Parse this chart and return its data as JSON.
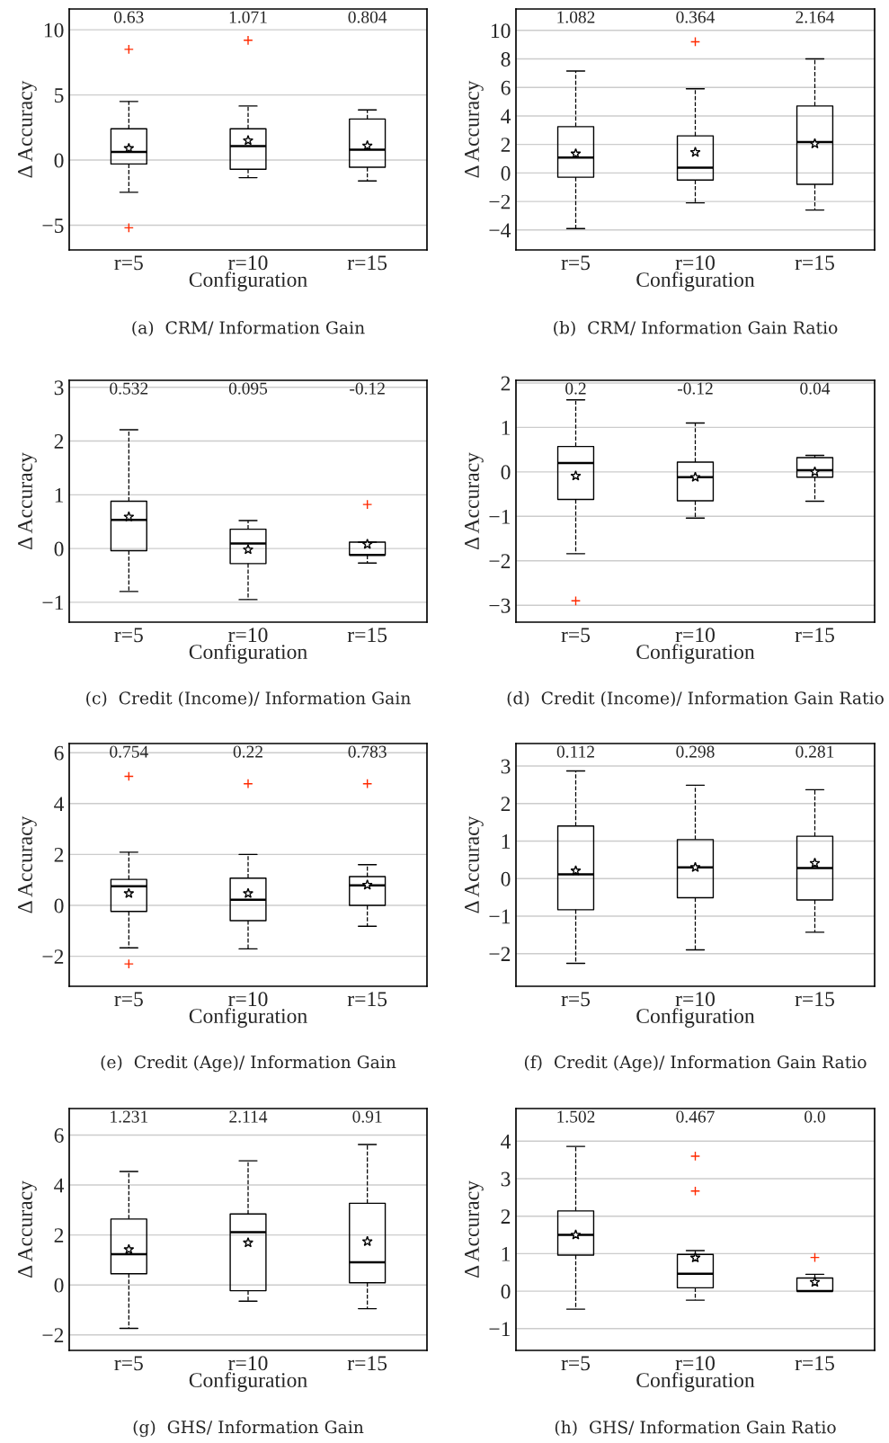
{
  "chart_data": [
    {
      "type": "box",
      "title": "(a)  CRM/ Information Gain",
      "xlabel": "Configuration",
      "ylabel": "Δ Accuracy",
      "categories": [
        "r=5",
        "r=10",
        "r=15"
      ],
      "ylim": [
        -6.9,
        11.6
      ],
      "yticks": [
        -5,
        0,
        5,
        10
      ],
      "grid": "y",
      "boxes": [
        {
          "low": -2.47,
          "q1": -0.3,
          "median": 0.63,
          "q3": 2.4,
          "high": 4.5,
          "mean": 0.9,
          "outliers": [
            8.5,
            -5.2
          ]
        },
        {
          "low": -1.35,
          "q1": -0.7,
          "median": 1.071,
          "q3": 2.4,
          "high": 4.15,
          "mean": 1.5,
          "outliers": [
            9.2
          ]
        },
        {
          "low": -1.6,
          "q1": -0.55,
          "median": 0.804,
          "q3": 3.15,
          "high": 3.85,
          "mean": 1.1
        }
      ],
      "annotations": [
        "0.63",
        "1.071",
        "0.804"
      ]
    },
    {
      "type": "box",
      "title": "(b)  CRM/ Information Gain Ratio",
      "xlabel": "Configuration",
      "ylabel": "Δ Accuracy",
      "categories": [
        "r=5",
        "r=10",
        "r=15"
      ],
      "ylim": [
        -5.4,
        11.5
      ],
      "yticks": [
        -4,
        -2,
        0,
        2,
        4,
        6,
        8,
        10
      ],
      "grid": "y",
      "boxes": [
        {
          "low": -3.9,
          "q1": -0.3,
          "median": 1.082,
          "q3": 3.25,
          "high": 7.15,
          "mean": 1.35
        },
        {
          "low": -2.1,
          "q1": -0.5,
          "median": 0.364,
          "q3": 2.6,
          "high": 5.9,
          "mean": 1.45,
          "outliers": [
            9.2
          ]
        },
        {
          "low": -2.6,
          "q1": -0.8,
          "median": 2.164,
          "q3": 4.7,
          "high": 8.0,
          "mean": 2.05
        }
      ],
      "annotations": [
        "1.082",
        "0.364",
        "2.164"
      ]
    },
    {
      "type": "box",
      "title": "(c)  Credit (Income)/ Information Gain",
      "xlabel": "Configuration",
      "ylabel": "Δ Accuracy",
      "categories": [
        "r=5",
        "r=10",
        "r=15"
      ],
      "ylim": [
        -1.37,
        3.13
      ],
      "yticks": [
        -1,
        0,
        1,
        2,
        3
      ],
      "grid": "y",
      "boxes": [
        {
          "low": -0.8,
          "q1": -0.04,
          "median": 0.532,
          "q3": 0.88,
          "high": 2.21,
          "mean": 0.59
        },
        {
          "low": -0.95,
          "q1": -0.28,
          "median": 0.095,
          "q3": 0.36,
          "high": 0.52,
          "mean": -0.02
        },
        {
          "low": -0.27,
          "q1": -0.12,
          "median": -0.12,
          "q3": 0.12,
          "high": 0.12,
          "mean": 0.08,
          "outliers": [
            0.82
          ]
        }
      ],
      "annotations": [
        "0.532",
        "0.095",
        "-0.12"
      ]
    },
    {
      "type": "box",
      "title": "(d)  Credit (Income)/ Information Gain Ratio",
      "xlabel": "Configuration",
      "ylabel": "Δ Accuracy",
      "categories": [
        "r=5",
        "r=10",
        "r=15"
      ],
      "ylim": [
        -3.38,
        2.06
      ],
      "yticks": [
        -3,
        -2,
        -1,
        0,
        1,
        2
      ],
      "grid": "y",
      "boxes": [
        {
          "low": -1.84,
          "q1": -0.62,
          "median": 0.2,
          "q3": 0.57,
          "high": 1.62,
          "mean": -0.09,
          "outliers": [
            -2.9
          ]
        },
        {
          "low": -1.04,
          "q1": -0.65,
          "median": -0.12,
          "q3": 0.22,
          "high": 1.1,
          "mean": -0.12
        },
        {
          "low": -0.66,
          "q1": -0.12,
          "median": 0.04,
          "q3": 0.32,
          "high": 0.37,
          "mean": 0.0
        }
      ],
      "annotations": [
        "0.2",
        "-0.12",
        "0.04"
      ]
    },
    {
      "type": "box",
      "title": "(e)  Credit (Age)/ Information Gain",
      "xlabel": "Configuration",
      "ylabel": "Δ Accuracy",
      "categories": [
        "r=5",
        "r=10",
        "r=15"
      ],
      "ylim": [
        -3.18,
        6.36
      ],
      "yticks": [
        -2,
        0,
        2,
        4,
        6
      ],
      "grid": "y",
      "boxes": [
        {
          "low": -1.67,
          "q1": -0.24,
          "median": 0.754,
          "q3": 1.02,
          "high": 2.09,
          "mean": 0.47,
          "outliers": [
            5.07,
            -2.3
          ]
        },
        {
          "low": -1.71,
          "q1": -0.6,
          "median": 0.22,
          "q3": 1.07,
          "high": 2.0,
          "mean": 0.47,
          "outliers": [
            4.78
          ]
        },
        {
          "low": -0.82,
          "q1": 0.0,
          "median": 0.783,
          "q3": 1.13,
          "high": 1.6,
          "mean": 0.8,
          "outliers": [
            4.78
          ]
        }
      ],
      "annotations": [
        "0.754",
        "0.22",
        "0.783"
      ]
    },
    {
      "type": "box",
      "title": "(f)  Credit (Age)/ Information Gain Ratio",
      "xlabel": "Configuration",
      "ylabel": "Δ Accuracy",
      "categories": [
        "r=5",
        "r=10",
        "r=15"
      ],
      "ylim": [
        -2.87,
        3.6
      ],
      "yticks": [
        -2,
        -1,
        0,
        1,
        2,
        3
      ],
      "grid": "y",
      "boxes": [
        {
          "low": -2.26,
          "q1": -0.83,
          "median": 0.112,
          "q3": 1.4,
          "high": 2.87,
          "mean": 0.21
        },
        {
          "low": -1.9,
          "q1": -0.51,
          "median": 0.298,
          "q3": 1.04,
          "high": 2.49,
          "mean": 0.3
        },
        {
          "low": -1.43,
          "q1": -0.57,
          "median": 0.281,
          "q3": 1.13,
          "high": 2.37,
          "mean": 0.41
        }
      ],
      "annotations": [
        "0.112",
        "0.298",
        "0.281"
      ]
    },
    {
      "type": "box",
      "title": "(g)  GHS/ Information Gain",
      "xlabel": "Configuration",
      "ylabel": "Δ Accuracy",
      "categories": [
        "r=5",
        "r=10",
        "r=15"
      ],
      "ylim": [
        -2.62,
        7.06
      ],
      "yticks": [
        -2,
        0,
        2,
        4,
        6
      ],
      "grid": "y",
      "boxes": [
        {
          "low": -1.74,
          "q1": 0.45,
          "median": 1.231,
          "q3": 2.64,
          "high": 4.54,
          "mean": 1.42
        },
        {
          "low": -0.65,
          "q1": -0.23,
          "median": 2.114,
          "q3": 2.84,
          "high": 4.97,
          "mean": 1.69
        },
        {
          "low": -0.95,
          "q1": 0.09,
          "median": 0.91,
          "q3": 3.27,
          "high": 5.62,
          "mean": 1.74
        }
      ],
      "annotations": [
        "1.231",
        "2.114",
        "0.91"
      ]
    },
    {
      "type": "box",
      "title": "(h)  GHS/ Information Gain Ratio",
      "xlabel": "Configuration",
      "ylabel": "Δ Accuracy",
      "categories": [
        "r=5",
        "r=10",
        "r=15"
      ],
      "ylim": [
        -1.58,
        4.87
      ],
      "yticks": [
        -1,
        0,
        1,
        2,
        3,
        4
      ],
      "grid": "y",
      "boxes": [
        {
          "low": -0.48,
          "q1": 0.96,
          "median": 1.502,
          "q3": 2.14,
          "high": 3.86,
          "mean": 1.5
        },
        {
          "low": -0.24,
          "q1": 0.09,
          "median": 0.467,
          "q3": 0.98,
          "high": 1.08,
          "mean": 0.89,
          "outliers": [
            3.6,
            2.67
          ]
        },
        {
          "low": 0.0,
          "q1": 0.0,
          "median": 0.0,
          "q3": 0.35,
          "high": 0.45,
          "mean": 0.24,
          "outliers": [
            0.9
          ]
        }
      ],
      "annotations": [
        "1.502",
        "0.467",
        "0.0"
      ]
    }
  ]
}
